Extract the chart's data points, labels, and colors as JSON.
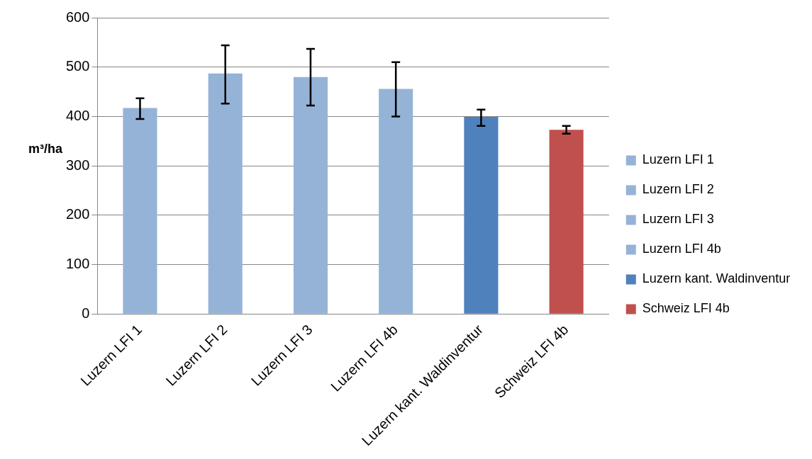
{
  "chart_data": {
    "type": "bar",
    "ylabel": "m³/ha",
    "categories": [
      "Luzern LFI 1",
      "Luzern LFI 2",
      "Luzern LFI 3",
      "Luzern LFI 4b",
      "Luzern kant. Waldinventur",
      "Schweiz LFI 4b"
    ],
    "series": [
      {
        "name": "Luzern LFI 1",
        "color": "#95b3d7",
        "values": [
          417,
          null,
          null,
          null,
          null,
          null
        ],
        "errors": [
          [
            395,
            437
          ],
          null,
          null,
          null,
          null,
          null
        ]
      },
      {
        "name": "Luzern LFI 2",
        "color": "#95b3d7",
        "values": [
          null,
          487,
          null,
          null,
          null,
          null
        ],
        "errors": [
          null,
          [
            426,
            544
          ],
          null,
          null,
          null,
          null
        ]
      },
      {
        "name": "Luzern LFI 3",
        "color": "#95b3d7",
        "values": [
          null,
          null,
          480,
          null,
          null,
          null
        ],
        "errors": [
          null,
          null,
          [
            422,
            537
          ],
          null,
          null,
          null
        ]
      },
      {
        "name": "Luzern LFI 4b",
        "color": "#95b3d7",
        "values": [
          null,
          null,
          null,
          456,
          null,
          null
        ],
        "errors": [
          null,
          null,
          null,
          [
            400,
            510
          ],
          null,
          null
        ]
      },
      {
        "name": "Luzern kant. Waldinventur",
        "color": "#4f81bd",
        "values": [
          null,
          null,
          null,
          null,
          399,
          null
        ],
        "errors": [
          null,
          null,
          null,
          null,
          [
            381,
            414
          ],
          null
        ]
      },
      {
        "name": "Schweiz LFI 4b",
        "color": "#c0504d",
        "values": [
          null,
          null,
          null,
          null,
          null,
          373
        ],
        "errors": [
          null,
          null,
          null,
          null,
          null,
          [
            365,
            381
          ]
        ]
      }
    ],
    "ylim": [
      0,
      600
    ],
    "yticks": [
      0,
      100,
      200,
      300,
      400,
      500,
      600
    ],
    "grid": "y",
    "legend": "right"
  }
}
